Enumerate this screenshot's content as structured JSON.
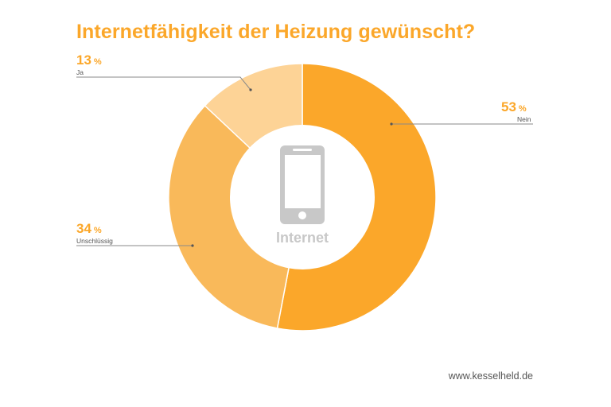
{
  "title": "Internetfähigkeit der Heizung gewünscht?",
  "center": {
    "icon": "smartphone-icon",
    "label": "Internet"
  },
  "footer": "www.kesselheld.de",
  "labels": {
    "nein": {
      "value": "53",
      "unit": "%",
      "name": "Nein"
    },
    "ja": {
      "value": "13",
      "unit": "%",
      "name": "Ja"
    },
    "unschluessig": {
      "value": "34",
      "unit": "%",
      "name": "Unschlüssig"
    }
  },
  "colors": {
    "nein": "#FBA72A",
    "unschluessig": "#F9B95A",
    "ja": "#FDD396",
    "title": "#FBA72A",
    "icon": "#C8C8C8"
  },
  "chart_data": {
    "type": "pie",
    "variant": "donut",
    "title": "Internetfähigkeit der Heizung gewünscht?",
    "center_label": "Internet",
    "categories": [
      "Nein",
      "Unschlüssig",
      "Ja"
    ],
    "values": [
      53,
      34,
      13
    ],
    "unit": "%",
    "start_angle": "12 o'clock, clockwise",
    "colors": [
      "#FBA72A",
      "#F9B95A",
      "#FDD396"
    ],
    "legend": "none (leader-line labels)"
  }
}
